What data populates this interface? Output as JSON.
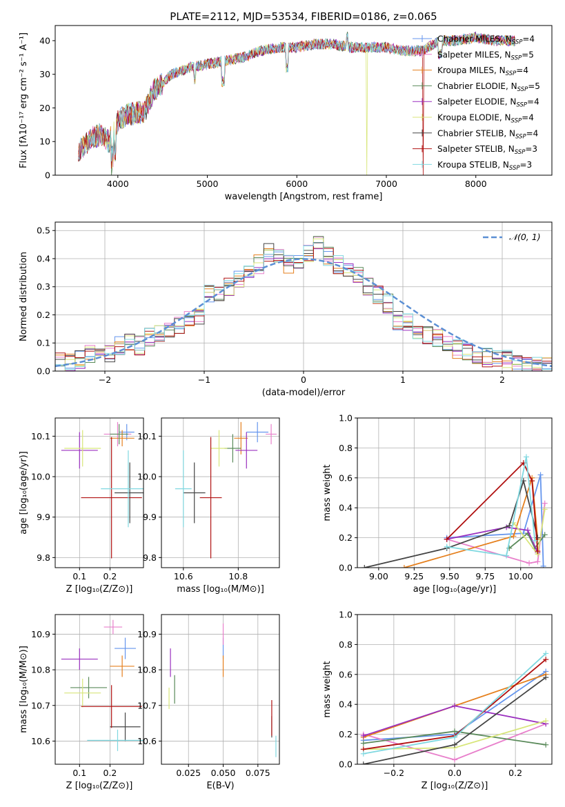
{
  "colors": [
    "#6495ed",
    "#e87fcb",
    "#e57f1c",
    "#5a8a5a",
    "#9a2fbf",
    "#d8e67a",
    "#444444",
    "#b01010",
    "#7fd8e0"
  ],
  "spectrum": {
    "title": "PLATE=2112, MJD=53534, FIBERID=0186, z=0.065",
    "xlabel": "wavelength [Angstrom, rest frame]",
    "ylabel": "Flux [fλ10⁻¹⁷ erg cm⁻² s⁻¹ A⁻¹]",
    "legend": [
      "Chabrier MILES, N_SSP=4",
      "Salpeter MILES, N_SSP=5",
      "Kroupa MILES, N_SSP=4",
      "Chabrier ELODIE, N_SSP=5",
      "Salpeter ELODIE, N_SSP=4",
      "Kroupa ELODIE, N_SSP=4",
      "Chabrier STELIB, N_SSP=4",
      "Salpeter STELIB, N_SSP=3",
      "Kroupa STELIB, N_SSP=3"
    ],
    "xticks": [
      "4000",
      "5000",
      "6000",
      "7000",
      "8000"
    ],
    "yticks": [
      "0",
      "10",
      "20",
      "30",
      "40"
    ]
  },
  "residuals": {
    "xlabel": "(data-model)/error",
    "ylabel": "Normed distribution",
    "legend": "𝒩(0, 1)",
    "xticks": [
      "−2",
      "−1",
      "0",
      "1",
      "2"
    ],
    "yticks": [
      "0.0",
      "0.1",
      "0.2",
      "0.3",
      "0.4",
      "0.5"
    ]
  },
  "age_z": {
    "xlabel": "Z [log₁₀(Z/Z⊙)]",
    "ylabel": "age [log₁₀(age/yr)]",
    "xticks": [
      "0.1",
      "0.2"
    ],
    "yticks": [
      "9.8",
      "9.9",
      "10.0",
      "10.1"
    ]
  },
  "age_mass": {
    "xlabel": "mass [log₁₀(M/M⊙)]",
    "xticks": [
      "10.6",
      "10.8"
    ],
    "yticks": [
      "9.8",
      "9.9",
      "10.0",
      "10.1"
    ]
  },
  "mw_age": {
    "xlabel": "age [log₁₀(age/yr)]",
    "ylabel": "mass weight",
    "xticks": [
      "9.00",
      "9.25",
      "9.50",
      "9.75",
      "10.00"
    ],
    "yticks": [
      "0.0",
      "0.2",
      "0.4",
      "0.6",
      "0.8",
      "1.0"
    ]
  },
  "mass_z": {
    "xlabel": "Z [log₁₀(Z/Z⊙)]",
    "ylabel": "mass [log₁₀(M/M⊙)]",
    "xticks": [
      "0.1",
      "0.2"
    ],
    "yticks": [
      "10.6",
      "10.7",
      "10.8",
      "10.9"
    ]
  },
  "mass_ebv": {
    "xlabel": "E(B-V)",
    "xticks": [
      "0.025",
      "0.050",
      "0.075"
    ],
    "yticks": [
      "10.6",
      "10.7",
      "10.8",
      "10.9"
    ]
  },
  "mw_z": {
    "xlabel": "Z [log₁₀(Z/Z⊙)]",
    "ylabel": "mass weight",
    "xticks": [
      "−0.2",
      "0.0",
      "0.2"
    ],
    "yticks": [
      "0.0",
      "0.2",
      "0.4",
      "0.6",
      "0.8",
      "1.0"
    ]
  },
  "chart_data": [
    {
      "type": "line",
      "title": "PLATE=2112, MJD=53534, FIBERID=0186, z=0.065",
      "xlim": [
        3300,
        8850
      ],
      "ylim": [
        0,
        44.5
      ],
      "series": [
        {
          "name": "Chabrier MILES, N_SSP=4",
          "x": [
            3560,
            3700,
            3800,
            3900,
            4000,
            4100,
            4300,
            4400,
            4600,
            4800,
            5000,
            5200,
            5400,
            5600,
            5800,
            6000,
            6200,
            6400,
            6600,
            6800,
            7000,
            7200,
            7400,
            7600,
            7800,
            8000,
            8200,
            8400
          ],
          "y": [
            7,
            11,
            12,
            10,
            16,
            18,
            19,
            25,
            30,
            32,
            33,
            34,
            35,
            37,
            38,
            38,
            39,
            39,
            38,
            38,
            38,
            37,
            37,
            40,
            40,
            41,
            40,
            40
          ]
        }
      ]
    },
    {
      "type": "line",
      "xlim": [
        -2.5,
        2.5
      ],
      "ylim": [
        0,
        0.53
      ],
      "series": [
        {
          "name": "𝒩(0, 1)",
          "x": [
            -2.5,
            -2.0,
            -1.5,
            -1.0,
            -0.5,
            0.0,
            0.5,
            1.0,
            1.5,
            2.0,
            2.5
          ],
          "y": [
            0.018,
            0.054,
            0.13,
            0.242,
            0.352,
            0.399,
            0.352,
            0.242,
            0.13,
            0.054,
            0.018
          ]
        }
      ],
      "bin_edges": [
        -2.5,
        -2.4,
        -2.3,
        -2.2,
        -2.1,
        -2.0,
        -1.9,
        -1.8,
        -1.7,
        -1.6,
        -1.5,
        -1.4,
        -1.3,
        -1.2,
        -1.1,
        -1.0,
        -0.9,
        -0.8,
        -0.7,
        -0.6,
        -0.5,
        -0.4,
        -0.3,
        -0.2,
        -0.1,
        0.0,
        0.1,
        0.2,
        0.3,
        0.4,
        0.5,
        0.6,
        0.7,
        0.8,
        0.9,
        1.0,
        1.1,
        1.2,
        1.3,
        1.4,
        1.5,
        1.6,
        1.7,
        1.8,
        1.9,
        2.0,
        2.1,
        2.2,
        2.3,
        2.4,
        2.5
      ],
      "histogram_values": [
        0.03,
        0.03,
        0.04,
        0.06,
        0.05,
        0.06,
        0.09,
        0.1,
        0.09,
        0.12,
        0.13,
        0.14,
        0.16,
        0.18,
        0.2,
        0.28,
        0.27,
        0.3,
        0.33,
        0.36,
        0.38,
        0.42,
        0.4,
        0.38,
        0.39,
        0.42,
        0.45,
        0.41,
        0.38,
        0.36,
        0.34,
        0.3,
        0.27,
        0.24,
        0.18,
        0.18,
        0.15,
        0.13,
        0.12,
        0.1,
        0.08,
        0.07,
        0.06,
        0.05,
        0.05,
        0.04,
        0.03,
        0.03,
        0.02,
        0.02
      ]
    },
    {
      "type": "scatter",
      "xlim": [
        0.02,
        0.31
      ],
      "ylim": [
        9.775,
        10.145
      ],
      "points": [
        {
          "x": 0.255,
          "y": 10.11,
          "xerr": 0.025,
          "yerr": 0.02
        },
        {
          "x": 0.225,
          "y": 10.105,
          "xerr": 0.045,
          "yerr": 0.03
        },
        {
          "x": 0.24,
          "y": 10.095,
          "xerr": 0.04,
          "yerr": 0.02
        },
        {
          "x": 0.23,
          "y": 10.105,
          "xerr": 0.03,
          "yerr": 0.025
        },
        {
          "x": 0.1,
          "y": 10.065,
          "xerr": 0.06,
          "yerr": 0.045
        },
        {
          "x": 0.11,
          "y": 10.07,
          "xerr": 0.06,
          "yerr": 0.045
        },
        {
          "x": 0.265,
          "y": 9.96,
          "xerr": 0.05,
          "yerr": 0.075
        },
        {
          "x": 0.205,
          "y": 9.948,
          "xerr": 0.1,
          "yerr": 0.15
        },
        {
          "x": 0.26,
          "y": 9.97,
          "xerr": 0.09,
          "yerr": 0.095
        }
      ]
    },
    {
      "type": "scatter",
      "xlim": [
        10.52,
        10.95
      ],
      "ylim": [
        9.775,
        10.145
      ],
      "points": [
        {
          "x": 10.87,
          "y": 10.11,
          "xerr": 0.04,
          "yerr": 0.025
        },
        {
          "x": 10.92,
          "y": 10.105,
          "xerr": 0.02,
          "yerr": 0.025
        },
        {
          "x": 10.81,
          "y": 10.095,
          "xerr": 0.025,
          "yerr": 0.04
        },
        {
          "x": 10.78,
          "y": 10.07,
          "xerr": 0.03,
          "yerr": 0.035
        },
        {
          "x": 10.83,
          "y": 10.065,
          "xerr": 0.04,
          "yerr": 0.045
        },
        {
          "x": 10.73,
          "y": 10.07,
          "xerr": 0.03,
          "yerr": 0.045
        },
        {
          "x": 10.64,
          "y": 9.96,
          "xerr": 0.04,
          "yerr": 0.075
        },
        {
          "x": 10.7,
          "y": 9.948,
          "xerr": 0.04,
          "yerr": 0.15
        },
        {
          "x": 10.6,
          "y": 9.97,
          "xerr": 0.03,
          "yerr": 0.095
        }
      ]
    },
    {
      "type": "line",
      "xlim": [
        8.85,
        10.22
      ],
      "ylim": [
        0,
        1.0
      ],
      "series": [
        {
          "x": [
            9.48,
            10.02,
            10.14,
            10.16
          ],
          "y": [
            0.2,
            0.23,
            0.62,
            0.01
          ]
        },
        {
          "x": [
            9.48,
            10.06,
            10.12,
            10.17
          ],
          "y": [
            0.19,
            0.03,
            0.04,
            0.43
          ]
        },
        {
          "x": [
            9.18,
            9.95,
            10.08,
            10.12
          ],
          "y": [
            0.0,
            0.21,
            0.6,
            0.19
          ]
        },
        {
          "x": [
            9.92,
            10.05,
            10.1,
            10.17
          ],
          "y": [
            0.13,
            0.23,
            0.13,
            0.22
          ]
        },
        {
          "x": [
            9.48,
            9.9,
            10.05,
            10.12
          ],
          "y": [
            0.19,
            0.27,
            0.25,
            0.1
          ]
        },
        {
          "x": [
            9.95,
            10.12,
            10.17
          ],
          "y": [
            0.3,
            0.09,
            0.39
          ]
        },
        {
          "x": [
            8.9,
            9.48,
            9.92,
            10.02,
            10.12
          ],
          "y": [
            0.0,
            0.13,
            0.28,
            0.58,
            0.2
          ]
        },
        {
          "x": [
            9.48,
            10.02,
            10.08,
            10.12
          ],
          "y": [
            0.19,
            0.7,
            0.58,
            0.11
          ]
        },
        {
          "x": [
            9.48,
            9.9,
            10.04,
            10.1
          ],
          "y": [
            0.14,
            0.08,
            0.74,
            0.18
          ]
        }
      ]
    },
    {
      "type": "scatter",
      "xlim": [
        0.02,
        0.31
      ],
      "ylim": [
        10.535,
        10.955
      ],
      "points": [
        {
          "x": 0.25,
          "y": 10.86,
          "xerr": 0.035,
          "yerr": 0.03
        },
        {
          "x": 0.21,
          "y": 10.92,
          "xerr": 0.03,
          "yerr": 0.02
        },
        {
          "x": 0.24,
          "y": 10.81,
          "xerr": 0.04,
          "yerr": 0.03
        },
        {
          "x": 0.13,
          "y": 10.75,
          "xerr": 0.06,
          "yerr": 0.03
        },
        {
          "x": 0.1,
          "y": 10.83,
          "xerr": 0.06,
          "yerr": 0.03
        },
        {
          "x": 0.11,
          "y": 10.735,
          "xerr": 0.06,
          "yerr": 0.04
        },
        {
          "x": 0.25,
          "y": 10.64,
          "xerr": 0.05,
          "yerr": 0.04
        },
        {
          "x": 0.205,
          "y": 10.697,
          "xerr": 0.1,
          "yerr": 0.06
        },
        {
          "x": 0.225,
          "y": 10.602,
          "xerr": 0.1,
          "yerr": 0.03
        }
      ]
    },
    {
      "type": "scatter",
      "xlim": [
        0.0055,
        0.0905
      ],
      "ylim": [
        10.535,
        10.955
      ],
      "points": [
        {
          "x": 0.05,
          "y": 10.86,
          "xerr": 0.0,
          "yerr": 0.03
        },
        {
          "x": 0.05,
          "y": 10.9,
          "xerr": 0.0,
          "yerr": 0.03
        },
        {
          "x": 0.05,
          "y": 10.81,
          "xerr": 0.0,
          "yerr": 0.03
        },
        {
          "x": 0.015,
          "y": 10.745,
          "xerr": 0.0,
          "yerr": 0.04
        },
        {
          "x": 0.012,
          "y": 10.82,
          "xerr": 0.0,
          "yerr": 0.04
        },
        {
          "x": 0.011,
          "y": 10.72,
          "xerr": 0.0,
          "yerr": 0.03
        },
        {
          "x": 0.085,
          "y": 10.64,
          "xerr": 0.0,
          "yerr": 0.03
        },
        {
          "x": 0.085,
          "y": 10.665,
          "xerr": 0.0,
          "yerr": 0.05
        },
        {
          "x": 0.088,
          "y": 10.585,
          "xerr": 0.0,
          "yerr": 0.03
        }
      ]
    },
    {
      "type": "line",
      "xlim": [
        -0.32,
        0.32
      ],
      "ylim": [
        0,
        1.0
      ],
      "series": [
        {
          "x": [
            -0.3,
            0.0,
            0.3
          ],
          "y": [
            0.16,
            0.2,
            0.62
          ]
        },
        {
          "x": [
            -0.3,
            0.0,
            0.3
          ],
          "y": [
            0.2,
            0.03,
            0.27
          ]
        },
        {
          "x": [
            -0.3,
            0.0,
            0.3
          ],
          "y": [
            0.18,
            0.39,
            0.6
          ]
        },
        {
          "x": [
            -0.3,
            0.0,
            0.3
          ],
          "y": [
            0.14,
            0.22,
            0.13
          ]
        },
        {
          "x": [
            -0.3,
            0.0,
            0.3
          ],
          "y": [
            0.19,
            0.39,
            0.27
          ]
        },
        {
          "x": [
            -0.3,
            0.0,
            0.3
          ],
          "y": [
            0.1,
            0.11,
            0.29
          ]
        },
        {
          "x": [
            -0.3,
            0.0,
            0.3
          ],
          "y": [
            0.0,
            0.13,
            0.58
          ]
        },
        {
          "x": [
            -0.3,
            0.0,
            0.3
          ],
          "y": [
            0.1,
            0.19,
            0.7
          ]
        },
        {
          "x": [
            -0.3,
            0.0,
            0.3
          ],
          "y": [
            0.07,
            0.18,
            0.74
          ]
        }
      ]
    }
  ]
}
